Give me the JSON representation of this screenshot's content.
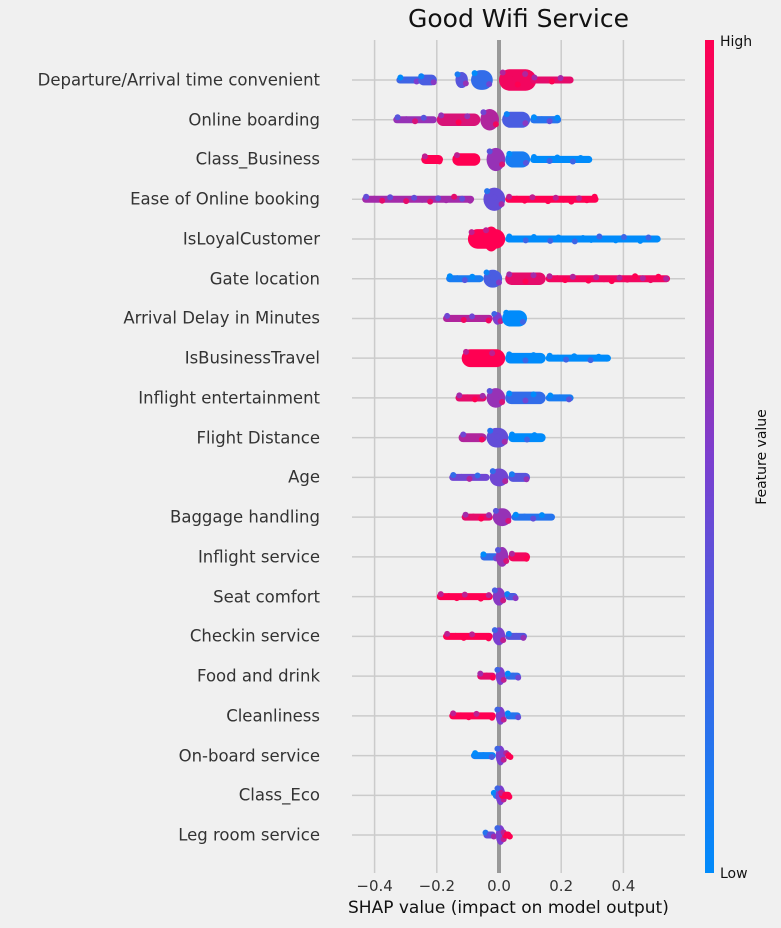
{
  "chart_data": {
    "type": "scatter",
    "subtype": "beeswarm",
    "title": "Good Wifi Service",
    "xlabel": "SHAP value (impact on model output)",
    "xlim": [
      -0.47,
      0.6
    ],
    "xticks": [
      -0.4,
      -0.2,
      0.0,
      0.2,
      0.4
    ],
    "xtick_labels": [
      "−0.4",
      "−0.2",
      "0.0",
      "0.2",
      "0.4"
    ],
    "grid": true,
    "colorbar": {
      "label": "Feature value",
      "high": "High",
      "low": "Low",
      "high_color": "#ff0052",
      "low_color": "#008bfb",
      "placement": "right"
    },
    "features": [
      {
        "name": "Departure/Arrival time convenient",
        "segments": [
          [
            -0.33,
            -0.2,
            0.25,
            0.15
          ],
          [
            -0.26,
            -0.2,
            0.3,
            0.3
          ],
          [
            -0.14,
            -0.1,
            0.35,
            0.45
          ],
          [
            -0.09,
            -0.02,
            0.2,
            0.55
          ],
          [
            0.0,
            0.12,
            0.95,
            0.6
          ],
          [
            0.1,
            0.24,
            0.9,
            0.15
          ]
        ]
      },
      {
        "name": "Online boarding",
        "segments": [
          [
            -0.34,
            -0.2,
            0.6,
            0.12
          ],
          [
            -0.2,
            -0.06,
            0.85,
            0.35
          ],
          [
            -0.06,
            0.0,
            0.7,
            0.6
          ],
          [
            0.01,
            0.1,
            0.3,
            0.45
          ],
          [
            0.1,
            0.2,
            0.15,
            0.2
          ]
        ]
      },
      {
        "name": "Class_Business",
        "segments": [
          [
            -0.25,
            -0.18,
            1,
            0.25
          ],
          [
            -0.15,
            -0.06,
            1,
            0.35
          ],
          [
            -0.04,
            0.02,
            0.6,
            0.65
          ],
          [
            0.02,
            0.1,
            0.1,
            0.45
          ],
          [
            0.1,
            0.3,
            0.0,
            0.2
          ]
        ]
      },
      {
        "name": "Ease of Online booking",
        "segments": [
          [
            -0.44,
            -0.08,
            0.65,
            0.1
          ],
          [
            -0.05,
            0.02,
            0.4,
            0.65
          ],
          [
            0.02,
            0.32,
            1,
            0.18
          ]
        ]
      },
      {
        "name": "IsLoyalCustomer",
        "segments": [
          [
            -0.1,
            0.02,
            1,
            0.55
          ],
          [
            -0.05,
            0.0,
            1,
            0.7
          ],
          [
            0.02,
            0.52,
            0.0,
            0.18
          ]
        ]
      },
      {
        "name": "Gate location",
        "segments": [
          [
            -0.17,
            -0.05,
            0.1,
            0.12
          ],
          [
            -0.05,
            0.01,
            0.3,
            0.5
          ],
          [
            0.02,
            0.15,
            0.9,
            0.35
          ],
          [
            0.15,
            0.55,
            0.95,
            0.15
          ]
        ]
      },
      {
        "name": "Arrival Delay in Minutes",
        "segments": [
          [
            -0.18,
            -0.02,
            0.7,
            0.2
          ],
          [
            -0.02,
            0.01,
            0.5,
            0.35
          ],
          [
            0.01,
            0.09,
            0.0,
            0.45
          ]
        ]
      },
      {
        "name": "IsBusinessTravel",
        "segments": [
          [
            -0.12,
            0.02,
            1,
            0.5
          ],
          [
            0.02,
            0.15,
            0.0,
            0.3
          ],
          [
            0.15,
            0.36,
            0.0,
            0.15
          ]
        ]
      },
      {
        "name": "Inflight entertainment",
        "segments": [
          [
            -0.14,
            -0.04,
            0.9,
            0.2
          ],
          [
            -0.04,
            0.02,
            0.6,
            0.55
          ],
          [
            0.02,
            0.15,
            0.2,
            0.35
          ],
          [
            0.15,
            0.24,
            0.1,
            0.15
          ]
        ]
      },
      {
        "name": "Flight Distance",
        "segments": [
          [
            -0.13,
            -0.04,
            0.7,
            0.25
          ],
          [
            -0.04,
            0.03,
            0.4,
            0.55
          ],
          [
            0.03,
            0.15,
            0.0,
            0.25
          ]
        ]
      },
      {
        "name": "Age",
        "segments": [
          [
            -0.16,
            -0.03,
            0.45,
            0.15
          ],
          [
            -0.03,
            0.03,
            0.45,
            0.5
          ],
          [
            0.03,
            0.1,
            0.35,
            0.25
          ]
        ]
      },
      {
        "name": "Baggage handling",
        "segments": [
          [
            -0.12,
            -0.02,
            0.9,
            0.15
          ],
          [
            -0.02,
            0.04,
            0.6,
            0.5
          ],
          [
            0.04,
            0.18,
            0.15,
            0.15
          ]
        ]
      },
      {
        "name": "Inflight service",
        "segments": [
          [
            -0.06,
            0.0,
            0.2,
            0.2
          ],
          [
            -0.01,
            0.03,
            0.6,
            0.55
          ],
          [
            0.03,
            0.1,
            0.95,
            0.25
          ]
        ]
      },
      {
        "name": "Seat comfort",
        "segments": [
          [
            -0.2,
            -0.02,
            1,
            0.15
          ],
          [
            -0.02,
            0.02,
            0.55,
            0.5
          ],
          [
            0.02,
            0.06,
            0.3,
            0.2
          ]
        ]
      },
      {
        "name": "Checkin service",
        "segments": [
          [
            -0.18,
            -0.02,
            1,
            0.15
          ],
          [
            -0.02,
            0.02,
            0.5,
            0.5
          ],
          [
            0.02,
            0.09,
            0.35,
            0.15
          ]
        ]
      },
      {
        "name": "Food and drink",
        "segments": [
          [
            -0.07,
            -0.01,
            0.9,
            0.15
          ],
          [
            -0.01,
            0.02,
            0.5,
            0.5
          ],
          [
            0.02,
            0.07,
            0.2,
            0.15
          ]
        ]
      },
      {
        "name": "Cleanliness",
        "segments": [
          [
            -0.16,
            -0.01,
            1,
            0.15
          ],
          [
            -0.01,
            0.02,
            0.5,
            0.5
          ],
          [
            0.02,
            0.07,
            0.15,
            0.12
          ]
        ]
      },
      {
        "name": "On-board service",
        "segments": [
          [
            -0.09,
            -0.01,
            0.05,
            0.12
          ],
          [
            -0.01,
            0.02,
            0.5,
            0.55
          ],
          [
            0.02,
            0.04,
            0.95,
            0.15
          ]
        ]
      },
      {
        "name": "Class_Eco",
        "segments": [
          [
            -0.02,
            0.0,
            0.1,
            0.2
          ],
          [
            -0.01,
            0.02,
            0.5,
            0.55
          ],
          [
            0.0,
            0.04,
            1,
            0.2
          ]
        ]
      },
      {
        "name": "Leg room service",
        "segments": [
          [
            -0.05,
            -0.01,
            0.4,
            0.12
          ],
          [
            -0.01,
            0.02,
            0.5,
            0.55
          ],
          [
            0.01,
            0.04,
            1,
            0.2
          ]
        ]
      }
    ]
  }
}
